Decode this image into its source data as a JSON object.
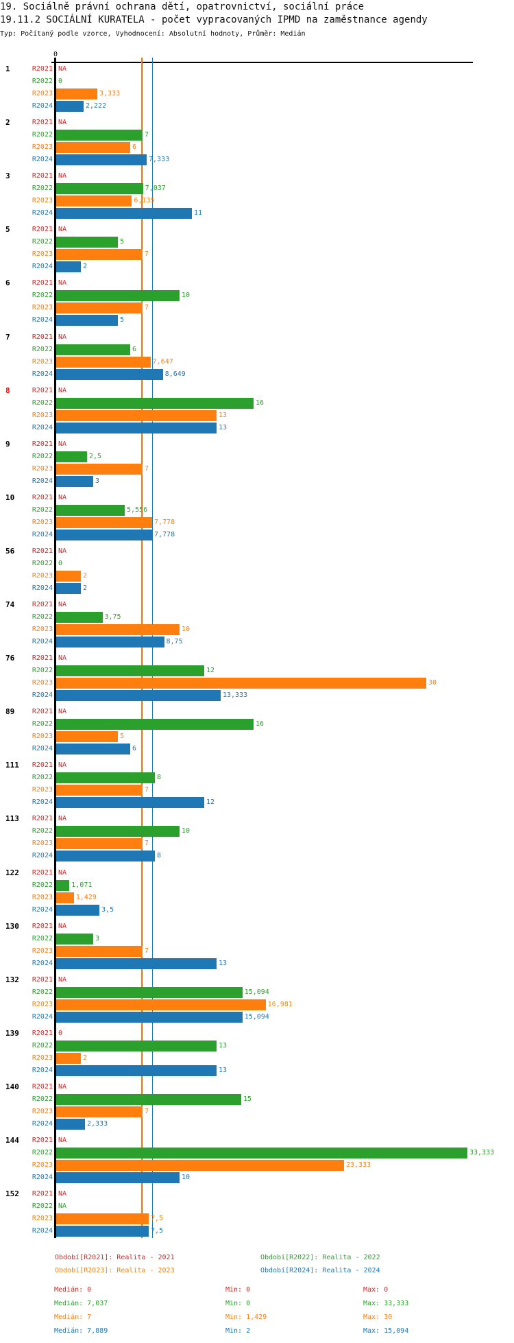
{
  "header": {
    "title": "19. Sociálně právní ochrana dětí, opatrovnictví, sociální práce",
    "subtitle": "19.11.2 SOCIÁLNÍ KURATELA - počet vypracovaných IPMD na zaměstnance agendy",
    "meta": "Typ: Počítaný podle vzorce, Vyhodnocení: Absolutní hodnoty, Průměr: Medián"
  },
  "colors": {
    "R2021": "#d62728",
    "R2022": "#2ca02c",
    "R2023": "#ff7f0e",
    "R2024": "#1f77b4"
  },
  "chart_data": {
    "type": "bar",
    "orientation": "horizontal",
    "axis_zero_label": "0",
    "xlim": [
      0,
      33.333
    ],
    "series_names": [
      "R2021",
      "R2022",
      "R2023",
      "R2024"
    ],
    "groups": [
      {
        "name": "1",
        "highlight": false,
        "values": [
          null,
          0,
          3.333,
          2.222
        ],
        "labels": [
          "NA",
          "0",
          "3,333",
          "2,222"
        ]
      },
      {
        "name": "2",
        "highlight": false,
        "values": [
          null,
          7,
          6,
          7.333
        ],
        "labels": [
          "NA",
          "7",
          "6",
          "7,333"
        ]
      },
      {
        "name": "3",
        "highlight": false,
        "values": [
          null,
          7.037,
          6.135,
          11
        ],
        "labels": [
          "NA",
          "7,037",
          "6,135",
          "11"
        ]
      },
      {
        "name": "5",
        "highlight": false,
        "values": [
          null,
          5,
          7,
          2
        ],
        "labels": [
          "NA",
          "5",
          "7",
          "2"
        ]
      },
      {
        "name": "6",
        "highlight": false,
        "values": [
          null,
          10,
          7,
          5
        ],
        "labels": [
          "NA",
          "10",
          "7",
          "5"
        ]
      },
      {
        "name": "7",
        "highlight": false,
        "values": [
          null,
          6,
          7.647,
          8.649
        ],
        "labels": [
          "NA",
          "6",
          "7,647",
          "8,649"
        ]
      },
      {
        "name": "8",
        "highlight": true,
        "values": [
          null,
          16,
          13,
          13
        ],
        "labels": [
          "NA",
          "16",
          "13",
          "13"
        ]
      },
      {
        "name": "9",
        "highlight": false,
        "values": [
          null,
          2.5,
          7,
          3
        ],
        "labels": [
          "NA",
          "2,5",
          "7",
          "3"
        ]
      },
      {
        "name": "10",
        "highlight": false,
        "values": [
          null,
          5.556,
          7.778,
          7.778
        ],
        "labels": [
          "NA",
          "5,556",
          "7,778",
          "7,778"
        ]
      },
      {
        "name": "56",
        "highlight": false,
        "values": [
          null,
          0,
          2,
          2
        ],
        "labels": [
          "NA",
          "0",
          "2",
          "2"
        ]
      },
      {
        "name": "74",
        "highlight": false,
        "values": [
          null,
          3.75,
          10,
          8.75
        ],
        "labels": [
          "NA",
          "3,75",
          "10",
          "8,75"
        ]
      },
      {
        "name": "76",
        "highlight": false,
        "values": [
          null,
          12,
          30,
          13.333
        ],
        "labels": [
          "NA",
          "12",
          "30",
          "13,333"
        ]
      },
      {
        "name": "89",
        "highlight": false,
        "values": [
          null,
          16,
          5,
          6
        ],
        "labels": [
          "NA",
          "16",
          "5",
          "6"
        ]
      },
      {
        "name": "111",
        "highlight": false,
        "values": [
          null,
          8,
          7,
          12
        ],
        "labels": [
          "NA",
          "8",
          "7",
          "12"
        ]
      },
      {
        "name": "113",
        "highlight": false,
        "values": [
          null,
          10,
          7,
          8
        ],
        "labels": [
          "NA",
          "10",
          "7",
          "8"
        ]
      },
      {
        "name": "122",
        "highlight": false,
        "values": [
          null,
          1.071,
          1.429,
          3.5
        ],
        "labels": [
          "NA",
          "1,071",
          "1,429",
          "3,5"
        ]
      },
      {
        "name": "130",
        "highlight": false,
        "values": [
          null,
          3,
          7,
          13
        ],
        "labels": [
          "NA",
          "3",
          "7",
          "13"
        ]
      },
      {
        "name": "132",
        "highlight": false,
        "values": [
          null,
          15.094,
          16.981,
          15.094
        ],
        "labels": [
          "NA",
          "15,094",
          "16,981",
          "15,094"
        ]
      },
      {
        "name": "139",
        "highlight": false,
        "values": [
          0,
          13,
          2,
          13
        ],
        "labels": [
          "0",
          "13",
          "2",
          "13"
        ]
      },
      {
        "name": "140",
        "highlight": false,
        "values": [
          null,
          15,
          7,
          2.333
        ],
        "labels": [
          "NA",
          "15",
          "7",
          "2,333"
        ]
      },
      {
        "name": "144",
        "highlight": false,
        "values": [
          null,
          33.333,
          23.333,
          10
        ],
        "labels": [
          "NA",
          "33,333",
          "23,333",
          "10"
        ]
      },
      {
        "name": "152",
        "highlight": false,
        "values": [
          null,
          null,
          7.5,
          7.5
        ],
        "labels": [
          "NA",
          "NA",
          "7,5",
          "7,5"
        ]
      }
    ],
    "median_lines": {
      "R2021": 0,
      "R2022": 7.037,
      "R2023": 7,
      "R2024": 7.889
    },
    "legend": [
      {
        "series": "R2021",
        "text": "Období[R2021]: Realita - 2021"
      },
      {
        "series": "R2022",
        "text": "Období[R2022]: Realita - 2022"
      },
      {
        "series": "R2023",
        "text": "Období[R2023]: Realita - 2023"
      },
      {
        "series": "R2024",
        "text": "Období[R2024]: Realita - 2024"
      }
    ],
    "stats": [
      {
        "series": "R2021",
        "median": "Medián: 0",
        "min": "Min: 0",
        "max": "Max: 0"
      },
      {
        "series": "R2022",
        "median": "Medián: 7,037",
        "min": "Min: 0",
        "max": "Max: 33,333"
      },
      {
        "series": "R2023",
        "median": "Medián: 7",
        "min": "Min: 1,429",
        "max": "Max: 30"
      },
      {
        "series": "R2024",
        "median": "Medián: 7,889",
        "min": "Min: 2",
        "max": "Max: 15,094"
      }
    ]
  }
}
